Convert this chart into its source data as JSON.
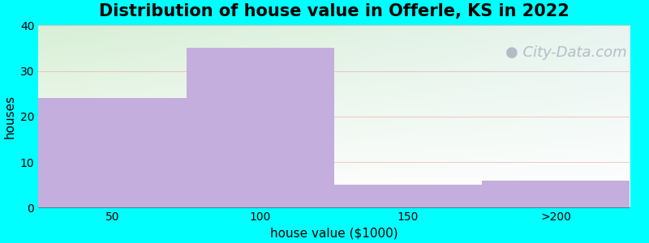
{
  "title": "Distribution of house value in Offerle, KS in 2022",
  "xlabel": "house value ($1000)",
  "ylabel": "houses",
  "categories": [
    "50",
    "100",
    "150",
    ">200"
  ],
  "values": [
    24,
    35,
    5,
    6
  ],
  "bar_color": "#c4aedd",
  "ylim": [
    0,
    40
  ],
  "yticks": [
    0,
    10,
    20,
    30,
    40
  ],
  "background_color": "#00ffff",
  "plot_bg_topleft": "#daf0d8",
  "plot_bg_topright": "#eaf5f5",
  "plot_bg_bottom": "#f0faf8",
  "title_fontsize": 15,
  "axis_label_fontsize": 11,
  "tick_fontsize": 10,
  "watermark_text": "City-Data.com",
  "watermark_color": "#a0aab8",
  "watermark_fontsize": 13,
  "grid_color": "#f0a0a0",
  "grid_alpha": 0.6
}
